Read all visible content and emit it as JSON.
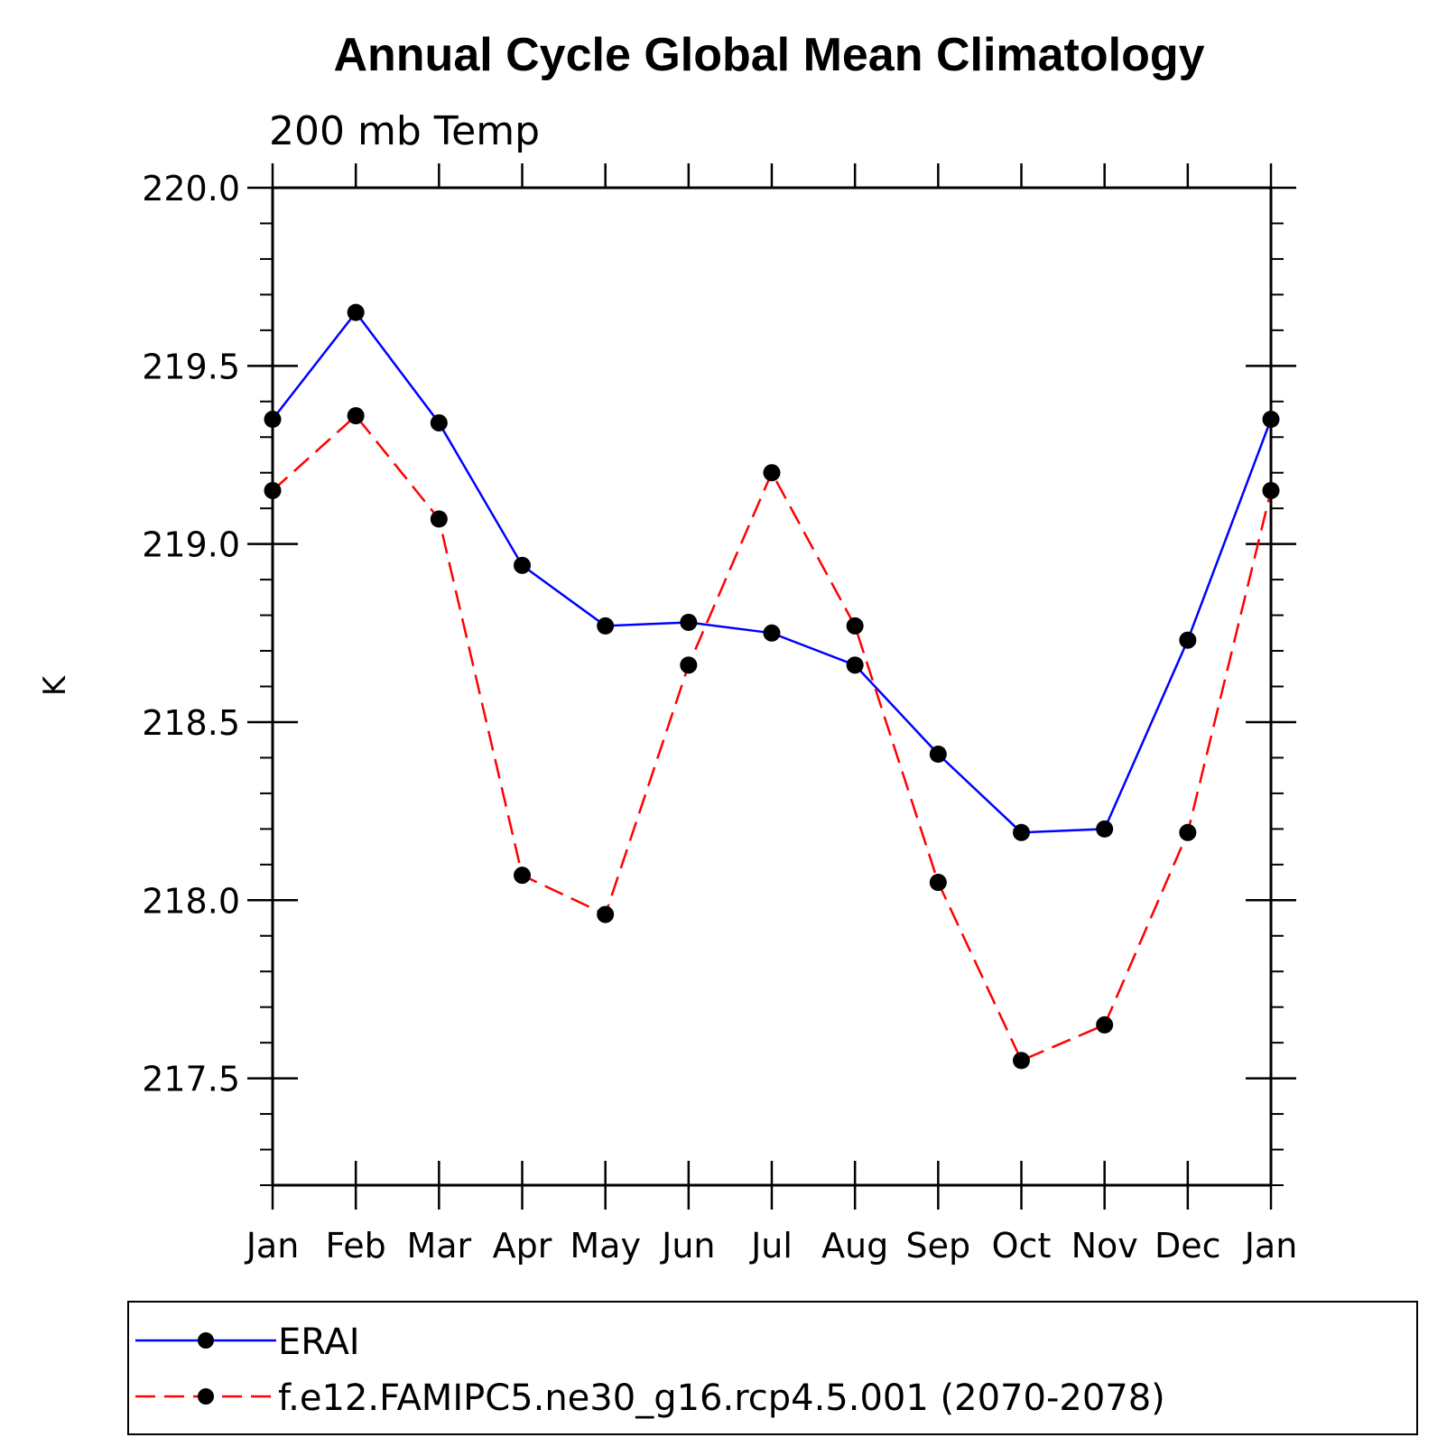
{
  "chart_data": {
    "type": "line",
    "title": "Annual Cycle Global Mean Climatology",
    "subtitle": "200 mb Temp",
    "xlabel": "",
    "ylabel": "K",
    "categories": [
      "Jan",
      "Feb",
      "Mar",
      "Apr",
      "May",
      "Jun",
      "Jul",
      "Aug",
      "Sep",
      "Oct",
      "Nov",
      "Dec",
      "Jan"
    ],
    "ylim": [
      217.2,
      220.0
    ],
    "yticks": [
      217.5,
      218.0,
      218.5,
      219.0,
      219.5,
      220.0
    ],
    "ytick_labels": [
      "217.5",
      "218.0",
      "218.5",
      "219.0",
      "219.5",
      "220.0"
    ],
    "series": [
      {
        "name": "ERAI",
        "color": "#0000ff",
        "line_style": "solid",
        "values": [
          219.35,
          219.65,
          219.34,
          218.94,
          218.77,
          218.78,
          218.75,
          218.66,
          218.41,
          218.19,
          218.2,
          218.73,
          219.35
        ]
      },
      {
        "name": "f.e12.FAMIPC5.ne30_g16.rcp4.5.001 (2070-2078)",
        "color": "#ff0000",
        "line_style": "dashed",
        "values": [
          219.15,
          219.36,
          219.07,
          218.07,
          217.96,
          218.66,
          219.2,
          218.77,
          218.05,
          217.55,
          217.65,
          218.19,
          219.15
        ]
      }
    ],
    "legend_position": "bottom"
  }
}
